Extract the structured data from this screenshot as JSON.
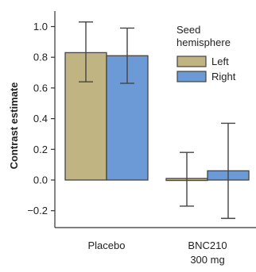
{
  "chart_data": {
    "type": "bar",
    "ylabel": "Contrast estimate",
    "xlabel": "",
    "ylim": [
      -0.3,
      1.1
    ],
    "yticks": [
      1.0,
      0.8,
      0.6,
      0.4,
      0.2,
      0.0,
      -0.2
    ],
    "ytick_labels": [
      "1.0",
      "0.8",
      "0.6",
      "0.4",
      "0.2",
      "0.0",
      "−0.2"
    ],
    "categories": [
      {
        "lines": [
          "Placebo"
        ]
      },
      {
        "lines": [
          "BNC210",
          "300 mg"
        ]
      }
    ],
    "legend": {
      "title_lines": [
        "Seed",
        "hemisphere"
      ],
      "placement": "top-right"
    },
    "series": [
      {
        "name": "Left",
        "color": "#c0b582",
        "values": [
          0.83,
          0.01
        ],
        "err_upper": [
          1.03,
          0.18
        ],
        "err_lower": [
          0.64,
          -0.17
        ]
      },
      {
        "name": "Right",
        "color": "#6b9ad6",
        "values": [
          0.81,
          0.06
        ],
        "err_upper": [
          0.99,
          0.37
        ],
        "err_lower": [
          0.63,
          -0.25
        ]
      }
    ],
    "grid": false
  }
}
